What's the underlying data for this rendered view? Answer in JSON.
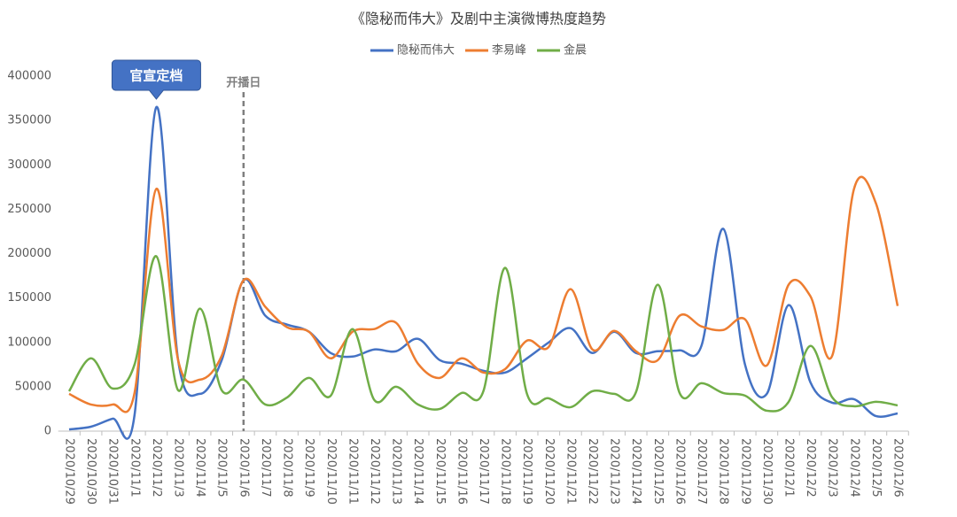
{
  "chart_data": {
    "type": "line",
    "title": "《隐秘而伟大》及剧中主演微博热度趋势",
    "categories": [
      "2020/10/29",
      "2020/10/30",
      "2020/10/31",
      "2020/11/1",
      "2020/11/2",
      "2020/11/3",
      "2020/11/4",
      "2020/11/5",
      "2020/11/6",
      "2020/11/7",
      "2020/11/8",
      "2020/11/9",
      "2020/11/10",
      "2020/11/11",
      "2020/11/12",
      "2020/11/13",
      "2020/11/14",
      "2020/11/15",
      "2020/11/16",
      "2020/11/17",
      "2020/11/18",
      "2020/11/19",
      "2020/11/20",
      "2020/11/21",
      "2020/11/22",
      "2020/11/23",
      "2020/11/24",
      "2020/11/25",
      "2020/11/26",
      "2020/11/27",
      "2020/11/28",
      "2020/11/29",
      "2020/11/30",
      "2020/12/1",
      "2020/12/2",
      "2020/12/3",
      "2020/12/4",
      "2020/12/5",
      "2020/12/6"
    ],
    "series": [
      {
        "name": "隐秘而伟大",
        "color": "#4472c4",
        "values": [
          2000,
          5000,
          14000,
          18000,
          365000,
          80000,
          42000,
          80000,
          170000,
          130000,
          120000,
          112000,
          88000,
          84000,
          92000,
          90000,
          104000,
          80000,
          76000,
          68000,
          66000,
          82000,
          100000,
          116000,
          88000,
          112000,
          88000,
          90000,
          91000,
          96000,
          228000,
          75000,
          42000,
          142000,
          55000,
          32000,
          36000,
          17000,
          20000
        ]
      },
      {
        "name": "李易峰",
        "color": "#ed7d31",
        "values": [
          42000,
          30000,
          30000,
          43000,
          273000,
          80000,
          58000,
          85000,
          170000,
          140000,
          117000,
          112000,
          82000,
          112000,
          115000,
          122000,
          76000,
          60000,
          82000,
          66000,
          70000,
          102000,
          95000,
          160000,
          92000,
          113000,
          90000,
          80000,
          130000,
          118000,
          114000,
          126000,
          74000,
          165000,
          152000,
          85000,
          273000,
          257000,
          141000
        ]
      },
      {
        "name": "金晨",
        "color": "#70ad47",
        "values": [
          45000,
          82000,
          48000,
          75000,
          197000,
          46000,
          138000,
          46000,
          58000,
          30000,
          38000,
          60000,
          40000,
          115000,
          35000,
          50000,
          30000,
          25000,
          43000,
          45000,
          184000,
          42000,
          37000,
          27000,
          45000,
          42000,
          44000,
          165000,
          43000,
          54000,
          43000,
          40000,
          23000,
          33000,
          96000,
          38000,
          28000,
          33000,
          29000
        ]
      }
    ],
    "ylim": [
      0,
      400000
    ],
    "yticks": [
      0,
      50000,
      100000,
      150000,
      200000,
      250000,
      300000,
      350000,
      400000
    ],
    "annotations": [
      {
        "text": "官宣定档",
        "x": "2020/11/2"
      },
      {
        "text": "开播日",
        "x": "2020/11/6"
      }
    ]
  }
}
